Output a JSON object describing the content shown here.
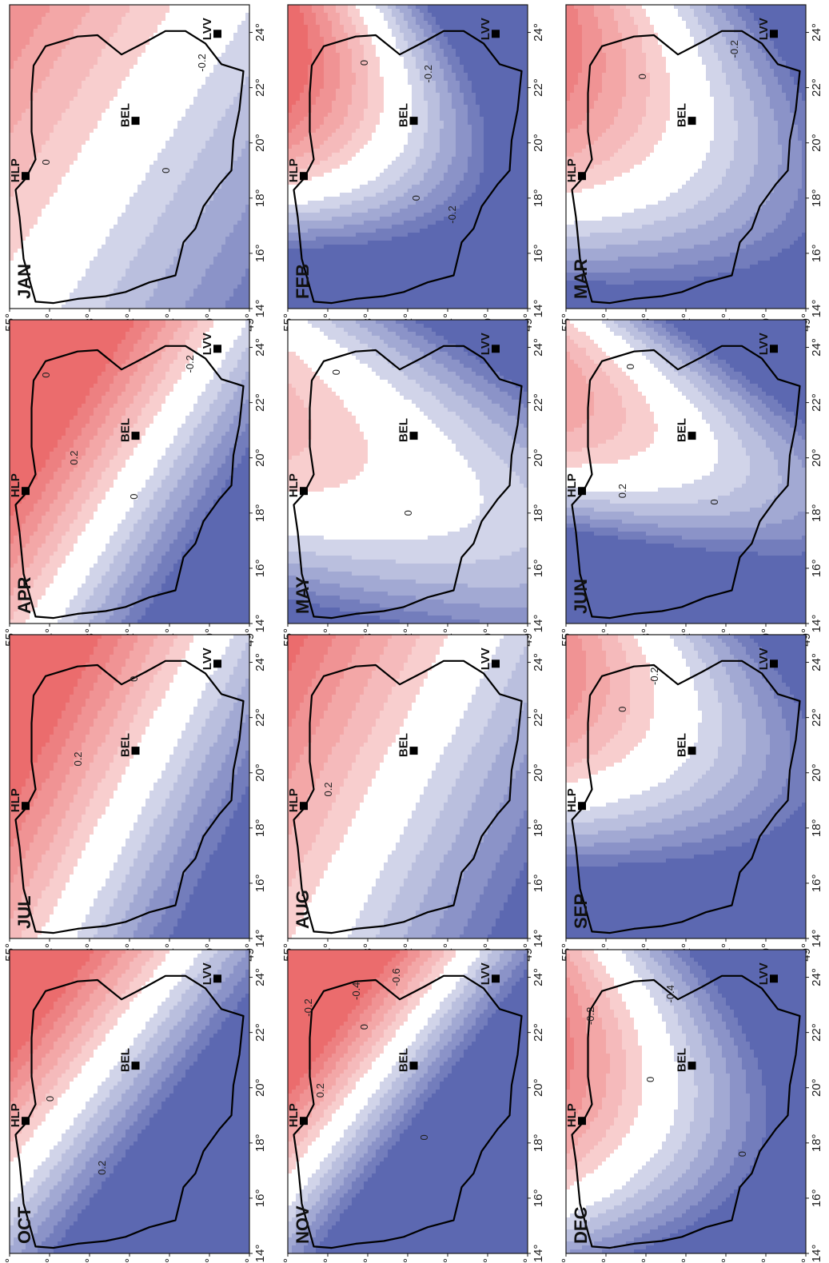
{
  "axes": {
    "lat_ticks": [
      "55°",
      "54°",
      "53°",
      "52°",
      "51°",
      "50°",
      "49°"
    ],
    "lon_ticks": [
      "14°",
      "16°",
      "18°",
      "20°",
      "22°",
      "24°"
    ],
    "lat_range": [
      49,
      55
    ],
    "lon_range": [
      14,
      25
    ]
  },
  "stations": [
    {
      "label": "HLP",
      "lat": 54.6,
      "lon": 18.8
    },
    {
      "label": "BEL",
      "lat": 51.85,
      "lon": 20.8
    },
    {
      "label": "LVV",
      "lat": 49.8,
      "lon": 23.95
    }
  ],
  "colors": {
    "positive": "#e8595a",
    "negative": "#4452a6",
    "zero": "#ffffff"
  },
  "contour_step": 0.1,
  "panels": [
    {
      "id": "jan",
      "label": "JAN",
      "row": 0,
      "col": 0,
      "field": {
        "center_lat": 52.0,
        "center_lon": 20.2,
        "gradient": 0.22,
        "angle_deg": 35,
        "curvature": 0.0
      },
      "contour_labels": [
        {
          "text": "0",
          "lat": 54.0,
          "lon": 19.3
        },
        {
          "text": "0",
          "lat": 51.0,
          "lon": 19.0
        },
        {
          "text": "-0.2",
          "lat": 50.1,
          "lon": 22.9
        }
      ]
    },
    {
      "id": "apr",
      "label": "APR",
      "row": 0,
      "col": 1,
      "field": {
        "center_lat": 51.6,
        "center_lon": 20.0,
        "gradient": 0.55,
        "angle_deg": 35,
        "curvature": 0.0
      },
      "contour_labels": [
        {
          "text": "0.2",
          "lat": 53.3,
          "lon": 20.0
        },
        {
          "text": "0",
          "lat": 51.8,
          "lon": 18.6
        },
        {
          "text": "0",
          "lat": 54.0,
          "lon": 23.0
        },
        {
          "text": "-0.2",
          "lat": 50.4,
          "lon": 23.4
        }
      ]
    },
    {
      "id": "jul",
      "label": "JUL",
      "row": 0,
      "col": 2,
      "field": {
        "center_lat": 51.2,
        "center_lon": 21.3,
        "gradient": 0.45,
        "angle_deg": 30,
        "curvature": 0.0
      },
      "contour_labels": [
        {
          "text": "0.2",
          "lat": 53.2,
          "lon": 20.5
        },
        {
          "text": "0",
          "lat": 51.8,
          "lon": 23.4
        }
      ]
    },
    {
      "id": "oct",
      "label": "OCT",
      "row": 0,
      "col": 3,
      "field": {
        "center_lat": 53.0,
        "center_lon": 20.3,
        "gradient": 0.62,
        "angle_deg": 40,
        "curvature": 0.0
      },
      "contour_labels": [
        {
          "text": "0",
          "lat": 53.9,
          "lon": 19.6
        },
        {
          "text": "0.2",
          "lat": 52.6,
          "lon": 17.1
        }
      ]
    },
    {
      "id": "feb",
      "label": "FEB",
      "row": 1,
      "col": 0,
      "field": {
        "center_lat": 52.4,
        "center_lon": 20.3,
        "gradient": 0.45,
        "angle_deg": 25,
        "curvature": 0.08
      },
      "contour_labels": [
        {
          "text": "0",
          "lat": 51.7,
          "lon": 18.0
        },
        {
          "text": "0",
          "lat": 53.0,
          "lon": 22.9
        },
        {
          "text": "-0.2",
          "lat": 51.4,
          "lon": 22.5
        },
        {
          "text": "-0.2",
          "lat": 50.8,
          "lon": 17.4
        }
      ]
    },
    {
      "id": "may",
      "label": "MAY",
      "row": 1,
      "col": 1,
      "field": {
        "center_lat": 51.6,
        "center_lon": 19.0,
        "gradient": 0.12,
        "angle_deg": 20,
        "curvature": 0.06
      },
      "contour_labels": [
        {
          "text": "0",
          "lat": 51.9,
          "lon": 18.0
        },
        {
          "text": "0",
          "lat": 53.7,
          "lon": 23.1
        }
      ]
    },
    {
      "id": "aug",
      "label": "AUG",
      "row": 1,
      "col": 2,
      "field": {
        "center_lat": 51.6,
        "center_lon": 21.3,
        "gradient": 0.3,
        "angle_deg": 30,
        "curvature": 0.0
      },
      "contour_labels": [
        {
          "text": "0.2",
          "lat": 53.9,
          "lon": 19.4
        }
      ]
    },
    {
      "id": "nov",
      "label": "NOV",
      "row": 1,
      "col": 3,
      "field": {
        "center_lat": 52.2,
        "center_lon": 21.6,
        "gradient": 0.8,
        "angle_deg": 40,
        "curvature": 0.0
      },
      "contour_labels": [
        {
          "text": "0.2",
          "lat": 54.1,
          "lon": 19.9
        },
        {
          "text": "0",
          "lat": 53.0,
          "lon": 22.2
        },
        {
          "text": "0",
          "lat": 51.5,
          "lon": 18.2
        },
        {
          "text": "-0.2",
          "lat": 54.4,
          "lon": 22.9
        },
        {
          "text": "-0.4",
          "lat": 53.2,
          "lon": 23.5
        },
        {
          "text": "-0.6",
          "lat": 52.2,
          "lon": 24.0
        }
      ]
    },
    {
      "id": "mar",
      "label": "MAR",
      "row": 2,
      "col": 0,
      "field": {
        "center_lat": 52.0,
        "center_lon": 20.0,
        "gradient": 0.3,
        "angle_deg": 25,
        "curvature": 0.05
      },
      "contour_labels": [
        {
          "text": "0",
          "lat": 53.0,
          "lon": 22.4
        },
        {
          "text": "-0.2",
          "lat": 50.7,
          "lon": 23.4
        }
      ]
    },
    {
      "id": "jun",
      "label": "JUN",
      "row": 2,
      "col": 1,
      "field": {
        "center_lat": 52.0,
        "center_lon": 20.3,
        "gradient": 0.22,
        "angle_deg": 20,
        "curvature": 0.12
      },
      "contour_labels": [
        {
          "text": "0.2",
          "lat": 53.5,
          "lon": 18.8
        },
        {
          "text": "0",
          "lat": 51.2,
          "lon": 18.4
        },
        {
          "text": "0",
          "lat": 53.3,
          "lon": 23.3
        }
      ]
    },
    {
      "id": "sep",
      "label": "SEP",
      "row": 2,
      "col": 2,
      "field": {
        "center_lat": 52.3,
        "center_lon": 21.5,
        "gradient": 0.3,
        "angle_deg": 20,
        "curvature": 0.06
      },
      "contour_labels": [
        {
          "text": "0",
          "lat": 53.5,
          "lon": 22.3
        },
        {
          "text": "-0.2",
          "lat": 52.7,
          "lon": 23.5
        }
      ]
    },
    {
      "id": "dec",
      "label": "DEC",
      "row": 2,
      "col": 3,
      "field": {
        "center_lat": 52.7,
        "center_lon": 19.3,
        "gradient": 0.4,
        "angle_deg": 15,
        "curvature": 0.05
      },
      "contour_labels": [
        {
          "text": "0",
          "lat": 52.8,
          "lon": 20.3
        },
        {
          "text": "0",
          "lat": 50.5,
          "lon": 17.6
        },
        {
          "text": "-0.2",
          "lat": 54.3,
          "lon": 22.6
        },
        {
          "text": "-0.4",
          "lat": 52.3,
          "lon": 23.4
        }
      ]
    }
  ],
  "border_outline": [
    [
      54.35,
      14.25
    ],
    [
      54.65,
      15.8
    ],
    [
      54.75,
      17.3
    ],
    [
      54.85,
      18.3
    ],
    [
      54.6,
      18.7
    ],
    [
      54.35,
      19.4
    ],
    [
      54.45,
      20.4
    ],
    [
      54.45,
      21.8
    ],
    [
      54.4,
      22.8
    ],
    [
      54.1,
      23.5
    ],
    [
      53.3,
      23.85
    ],
    [
      52.8,
      23.9
    ],
    [
      52.2,
      23.2
    ],
    [
      51.6,
      23.65
    ],
    [
      51.1,
      24.05
    ],
    [
      50.6,
      24.05
    ],
    [
      50.1,
      23.6
    ],
    [
      49.7,
      22.85
    ],
    [
      49.15,
      22.6
    ],
    [
      49.25,
      21.2
    ],
    [
      49.4,
      20.1
    ],
    [
      49.45,
      19.0
    ],
    [
      49.75,
      18.5
    ],
    [
      50.15,
      17.7
    ],
    [
      50.35,
      16.9
    ],
    [
      50.65,
      16.4
    ],
    [
      50.85,
      15.2
    ],
    [
      51.5,
      14.95
    ],
    [
      52.1,
      14.6
    ],
    [
      52.6,
      14.45
    ],
    [
      53.3,
      14.35
    ],
    [
      53.9,
      14.2
    ],
    [
      54.35,
      14.25
    ]
  ]
}
